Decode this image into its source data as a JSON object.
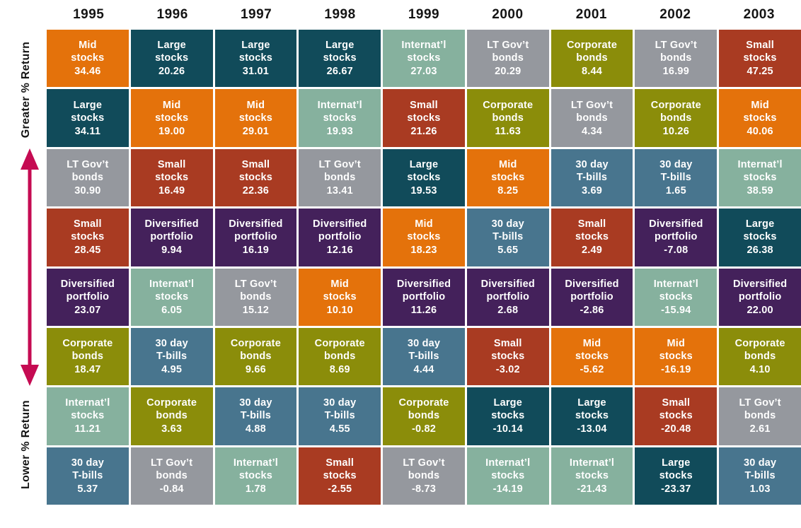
{
  "axis": {
    "greater_label": "Greater % Return",
    "lower_label": "Lower % Return"
  },
  "colors": {
    "arrow": "#C50B52",
    "year_text": "#141414",
    "cell_text": "#FFFFFF",
    "background": "#FFFFFF"
  },
  "assets": {
    "mid": {
      "name": "Mid stocks",
      "lines": [
        "Mid",
        "stocks"
      ],
      "color": "#E4720B"
    },
    "large": {
      "name": "Large stocks",
      "lines": [
        "Large",
        "stocks"
      ],
      "color": "#114B5A"
    },
    "intl": {
      "name": "Internat'l stocks",
      "lines": [
        "Internat’l",
        "stocks"
      ],
      "color": "#86B19E"
    },
    "ltgov": {
      "name": "LT Gov't bonds",
      "lines": [
        "LT Gov’t",
        "bonds"
      ],
      "color": "#95989E"
    },
    "corp": {
      "name": "Corporate bonds",
      "lines": [
        "Corporate",
        "bonds"
      ],
      "color": "#8B8D0A"
    },
    "small": {
      "name": "Small stocks",
      "lines": [
        "Small",
        "stocks"
      ],
      "color": "#A93B22"
    },
    "div": {
      "name": "Diversified portfolio",
      "lines": [
        "Diversified",
        "portfolio"
      ],
      "color": "#44215B"
    },
    "tbill": {
      "name": "30 day T-bills",
      "lines": [
        "30 day",
        "T-bills"
      ],
      "color": "#48758E"
    }
  },
  "chart_data": {
    "type": "table",
    "title": "Annual returns by asset class, ranked greatest to lowest per year",
    "columns": [
      "1995",
      "1996",
      "1997",
      "1998",
      "1999",
      "2000",
      "2001",
      "2002",
      "2003"
    ],
    "row_order": "ranked from greater % return (top) to lower % return (bottom)",
    "cells_by_year": {
      "1995": [
        [
          "mid",
          "34.46"
        ],
        [
          "large",
          "34.11"
        ],
        [
          "ltgov",
          "30.90"
        ],
        [
          "small",
          "28.45"
        ],
        [
          "div",
          "23.07"
        ],
        [
          "corp",
          "18.47"
        ],
        [
          "intl",
          "11.21"
        ],
        [
          "tbill",
          "5.37"
        ]
      ],
      "1996": [
        [
          "large",
          "20.26"
        ],
        [
          "mid",
          "19.00"
        ],
        [
          "small",
          "16.49"
        ],
        [
          "div",
          "9.94"
        ],
        [
          "intl",
          "6.05"
        ],
        [
          "tbill",
          "4.95"
        ],
        [
          "corp",
          "3.63"
        ],
        [
          "ltgov",
          "-0.84"
        ]
      ],
      "1997": [
        [
          "large",
          "31.01"
        ],
        [
          "mid",
          "29.01"
        ],
        [
          "small",
          "22.36"
        ],
        [
          "div",
          "16.19"
        ],
        [
          "ltgov",
          "15.12"
        ],
        [
          "corp",
          "9.66"
        ],
        [
          "tbill",
          "4.88"
        ],
        [
          "intl",
          "1.78"
        ]
      ],
      "1998": [
        [
          "large",
          "26.67"
        ],
        [
          "intl",
          "19.93"
        ],
        [
          "ltgov",
          "13.41"
        ],
        [
          "div",
          "12.16"
        ],
        [
          "mid",
          "10.10"
        ],
        [
          "corp",
          "8.69"
        ],
        [
          "tbill",
          "4.55"
        ],
        [
          "small",
          "-2.55"
        ]
      ],
      "1999": [
        [
          "intl",
          "27.03"
        ],
        [
          "small",
          "21.26"
        ],
        [
          "large",
          "19.53"
        ],
        [
          "mid",
          "18.23"
        ],
        [
          "div",
          "11.26"
        ],
        [
          "tbill",
          "4.44"
        ],
        [
          "corp",
          "-0.82"
        ],
        [
          "ltgov",
          "-8.73"
        ]
      ],
      "2000": [
        [
          "ltgov",
          "20.29"
        ],
        [
          "corp",
          "11.63"
        ],
        [
          "mid",
          "8.25"
        ],
        [
          "tbill",
          "5.65"
        ],
        [
          "div",
          "2.68"
        ],
        [
          "small",
          "-3.02"
        ],
        [
          "large",
          "-10.14"
        ],
        [
          "intl",
          "-14.19"
        ]
      ],
      "2001": [
        [
          "corp",
          "8.44"
        ],
        [
          "ltgov",
          "4.34"
        ],
        [
          "tbill",
          "3.69"
        ],
        [
          "small",
          "2.49"
        ],
        [
          "div",
          "-2.86"
        ],
        [
          "mid",
          "-5.62"
        ],
        [
          "large",
          "-13.04"
        ],
        [
          "intl",
          "-21.43"
        ]
      ],
      "2002": [
        [
          "ltgov",
          "16.99"
        ],
        [
          "corp",
          "10.26"
        ],
        [
          "tbill",
          "1.65"
        ],
        [
          "div",
          "-7.08"
        ],
        [
          "intl",
          "-15.94"
        ],
        [
          "mid",
          "-16.19"
        ],
        [
          "small",
          "-20.48"
        ],
        [
          "large",
          "-23.37"
        ]
      ],
      "2003": [
        [
          "small",
          "47.25"
        ],
        [
          "mid",
          "40.06"
        ],
        [
          "intl",
          "38.59"
        ],
        [
          "large",
          "26.38"
        ],
        [
          "div",
          "22.00"
        ],
        [
          "corp",
          "4.10"
        ],
        [
          "ltgov",
          "2.61"
        ],
        [
          "tbill",
          "1.03"
        ]
      ]
    }
  }
}
